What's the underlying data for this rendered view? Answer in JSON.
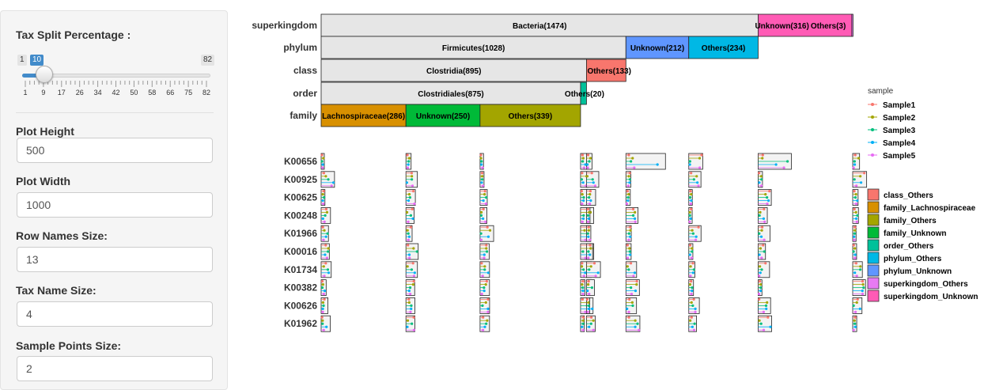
{
  "sidebar": {
    "tax_split": {
      "label": "Tax Split Percentage :",
      "min": "1",
      "max": "82",
      "value": "10",
      "ticks": [
        "1",
        "9",
        "17",
        "26",
        "34",
        "42",
        "50",
        "58",
        "66",
        "75",
        "82"
      ]
    },
    "plot_height": {
      "label": "Plot Height",
      "value": "500"
    },
    "plot_width": {
      "label": "Plot Width",
      "value": "1000"
    },
    "row_names_size": {
      "label": "Row Names Size:",
      "value": "13"
    },
    "tax_name_size": {
      "label": "Tax Name Size:",
      "value": "4"
    },
    "sample_points_size": {
      "label": "Sample Points Size:",
      "value": "2"
    }
  },
  "plot": {
    "levels": [
      {
        "name": "superkingdom",
        "segments": [
          {
            "label": "Bacteria(1474)",
            "start": 0,
            "count": 1474,
            "fill": "#e6e6e6",
            "cat": "bacteria"
          },
          {
            "label": "Unknown(316)",
            "start": 1474,
            "count": 316,
            "fill": "#ff5bb5",
            "cat": "superkingdom-unknown"
          },
          {
            "label": "Others(3)",
            "start": 1790,
            "count": 3,
            "fill": "#e77af3",
            "cat": "superkingdom-others"
          }
        ]
      },
      {
        "name": "phylum",
        "segments": [
          {
            "label": "Firmicutes(1028)",
            "start": 0,
            "count": 1028,
            "fill": "#e6e6e6",
            "cat": "firmicutes"
          },
          {
            "label": "Unknown(212)",
            "start": 1028,
            "count": 212,
            "fill": "#5f96ff",
            "cat": "phylum-unknown"
          },
          {
            "label": "Others(234)",
            "start": 1240,
            "count": 234,
            "fill": "#00b8e5",
            "cat": "phylum-others"
          }
        ]
      },
      {
        "name": "class",
        "segments": [
          {
            "label": "Clostridia(895)",
            "start": 0,
            "count": 895,
            "fill": "#e6e6e6",
            "cat": "clostridia"
          },
          {
            "label": "Others(133)",
            "start": 895,
            "count": 133,
            "fill": "#f8766d",
            "cat": "class-others"
          }
        ]
      },
      {
        "name": "order",
        "segments": [
          {
            "label": "Clostridiales(875)",
            "start": 0,
            "count": 875,
            "fill": "#e6e6e6",
            "cat": "clostridiales"
          },
          {
            "label": "Others(20)",
            "start": 875,
            "count": 20,
            "fill": "#00c19a",
            "cat": "order-others"
          }
        ]
      },
      {
        "name": "family",
        "segments": [
          {
            "label": "Lachnospiraceae(286)",
            "start": 0,
            "count": 286,
            "fill": "#d89000",
            "cat": "lachnospiraceae"
          },
          {
            "label": "Unknown(250)",
            "start": 286,
            "count": 250,
            "fill": "#00ba38",
            "cat": "family-unknown"
          },
          {
            "label": "Others(339)",
            "start": 536,
            "count": 339,
            "fill": "#a3a500",
            "cat": "family-others"
          }
        ]
      }
    ],
    "rows": [
      "K00656",
      "K00925",
      "K00625",
      "K00248",
      "K01966",
      "K00016",
      "K01734",
      "K00382",
      "K00626",
      "K01962"
    ],
    "sample_legend": {
      "title": "sample",
      "items": [
        {
          "label": "Sample1",
          "color": "#f8766d"
        },
        {
          "label": "Sample2",
          "color": "#a3a500"
        },
        {
          "label": "Sample3",
          "color": "#00bf7d"
        },
        {
          "label": "Sample4",
          "color": "#00b0f6"
        },
        {
          "label": "Sample5",
          "color": "#e76bf3"
        }
      ]
    },
    "fill_legend": {
      "items": [
        {
          "label": "class_Others",
          "color": "#f8766d"
        },
        {
          "label": "family_Lachnospiraceae",
          "color": "#d89000"
        },
        {
          "label": "family_Others",
          "color": "#a3a500"
        },
        {
          "label": "family_Unknown",
          "color": "#00ba38"
        },
        {
          "label": "order_Others",
          "color": "#00c19a"
        },
        {
          "label": "phylum_Others",
          "color": "#00b8e5"
        },
        {
          "label": "phylum_Unknown",
          "color": "#5f96ff"
        },
        {
          "label": "superkingdom_Others",
          "color": "#e77af3"
        },
        {
          "label": "superkingdom_Unknown",
          "color": "#ff5bb5"
        }
      ]
    }
  }
}
